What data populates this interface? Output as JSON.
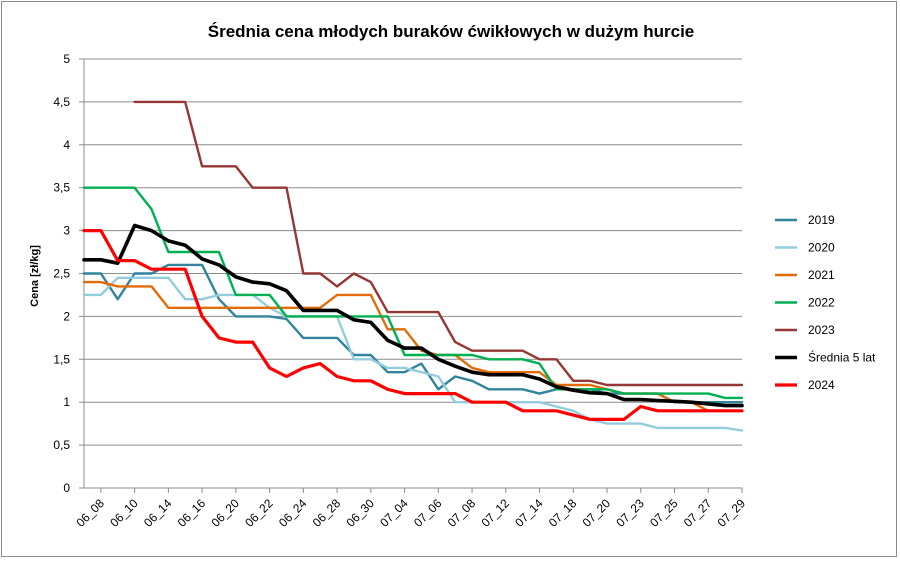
{
  "chart_data": {
    "type": "line",
    "title": "Średnia cena młodych buraków ćwikłowych w dużym hurcie",
    "xlabel": "",
    "ylabel": "Cena [zł/kg]",
    "ylim": [
      0,
      5
    ],
    "y_ticks": [
      "0",
      "0,5",
      "1",
      "1,5",
      "2",
      "2,5",
      "3",
      "3,5",
      "4",
      "4,5",
      "5"
    ],
    "grid": "horizontal",
    "legend_position": "right",
    "x_tick_labels": [
      "06_08",
      "06_10",
      "06_14",
      "06_16",
      "06_20",
      "06_22",
      "06_24",
      "06_28",
      "06_30",
      "07_04",
      "07_06",
      "07_08",
      "07_12",
      "07_14",
      "07_18",
      "07_20",
      "07_23",
      "07_25",
      "07_27",
      "07_29"
    ],
    "series": [
      {
        "name": "2019",
        "color": "#31849b",
        "width": 2.4,
        "values": [
          2.5,
          2.5,
          2.2,
          2.5,
          2.5,
          2.6,
          2.6,
          2.6,
          2.2,
          2.0,
          2.0,
          2.0,
          1.97,
          1.75,
          1.75,
          1.75,
          1.55,
          1.55,
          1.35,
          1.35,
          1.45,
          1.15,
          1.3,
          1.25,
          1.15,
          1.15,
          1.15,
          1.1,
          1.15,
          1.15,
          1.15,
          1.1,
          1.1,
          1.1,
          1.1,
          1.0,
          1.0,
          1.0,
          1.0,
          1.0
        ]
      },
      {
        "name": "2020",
        "color": "#93cddd",
        "width": 2.4,
        "values": [
          2.25,
          2.25,
          2.45,
          2.45,
          2.45,
          2.45,
          2.2,
          2.2,
          2.25,
          2.25,
          2.25,
          2.1,
          2.0,
          2.0,
          2.0,
          2.0,
          1.5,
          1.5,
          1.4,
          1.4,
          1.35,
          1.3,
          1.0,
          1.0,
          1.0,
          1.0,
          1.0,
          1.0,
          0.95,
          0.9,
          0.8,
          0.75,
          0.75,
          0.75,
          0.7,
          0.7,
          0.7,
          0.7,
          0.7,
          0.67
        ]
      },
      {
        "name": "2021",
        "color": "#e36c09",
        "width": 2.4,
        "values": [
          2.4,
          2.4,
          2.35,
          2.35,
          2.35,
          2.1,
          2.1,
          2.1,
          2.1,
          2.1,
          2.1,
          2.1,
          2.1,
          2.1,
          2.1,
          2.25,
          2.25,
          2.25,
          1.85,
          1.85,
          1.6,
          1.55,
          1.55,
          1.4,
          1.35,
          1.35,
          1.35,
          1.35,
          1.2,
          1.2,
          1.2,
          1.15,
          1.1,
          1.1,
          1.1,
          1.0,
          1.0,
          0.9,
          0.9,
          0.9
        ]
      },
      {
        "name": "2022",
        "color": "#00b050",
        "width": 2.4,
        "values": [
          3.5,
          3.5,
          3.5,
          3.5,
          3.25,
          2.75,
          2.75,
          2.75,
          2.75,
          2.25,
          2.25,
          2.25,
          2.0,
          2.0,
          2.0,
          2.0,
          2.0,
          2.0,
          2.0,
          1.55,
          1.55,
          1.55,
          1.55,
          1.55,
          1.5,
          1.5,
          1.5,
          1.45,
          1.15,
          1.15,
          1.15,
          1.15,
          1.1,
          1.1,
          1.1,
          1.1,
          1.1,
          1.1,
          1.05,
          1.05
        ]
      },
      {
        "name": "2023",
        "color": "#953735",
        "width": 2.4,
        "values": [
          null,
          null,
          null,
          4.5,
          4.5,
          4.5,
          4.5,
          3.75,
          3.75,
          3.75,
          3.5,
          3.5,
          3.5,
          2.5,
          2.5,
          2.35,
          2.5,
          2.4,
          2.05,
          2.05,
          2.05,
          2.05,
          1.7,
          1.6,
          1.6,
          1.6,
          1.6,
          1.5,
          1.5,
          1.25,
          1.25,
          1.2,
          1.2,
          1.2,
          1.2,
          1.2,
          1.2,
          1.2,
          1.2,
          1.2
        ]
      },
      {
        "name": "Średnia 5 lat",
        "color": "#000000",
        "width": 3.6,
        "values": [
          2.66,
          2.66,
          2.62,
          3.06,
          3.0,
          2.88,
          2.83,
          2.67,
          2.6,
          2.46,
          2.4,
          2.38,
          2.3,
          2.07,
          2.07,
          2.07,
          1.96,
          1.93,
          1.72,
          1.63,
          1.63,
          1.5,
          1.42,
          1.35,
          1.32,
          1.32,
          1.32,
          1.27,
          1.18,
          1.14,
          1.11,
          1.1,
          1.03,
          1.03,
          1.02,
          1.01,
          1.0,
          0.98,
          0.96,
          0.96
        ]
      },
      {
        "name": "2024",
        "color": "#ff0000",
        "width": 3.2,
        "values": [
          3.0,
          3.0,
          2.65,
          2.65,
          2.55,
          2.55,
          2.55,
          2.0,
          1.75,
          1.7,
          1.7,
          1.4,
          1.3,
          1.4,
          1.45,
          1.3,
          1.25,
          1.25,
          1.15,
          1.1,
          1.1,
          1.1,
          1.1,
          1.0,
          1.0,
          1.0,
          0.9,
          0.9,
          0.9,
          0.85,
          0.8,
          0.8,
          0.8,
          0.95,
          0.9,
          0.9,
          0.9,
          0.9,
          0.9,
          0.9
        ]
      }
    ]
  }
}
